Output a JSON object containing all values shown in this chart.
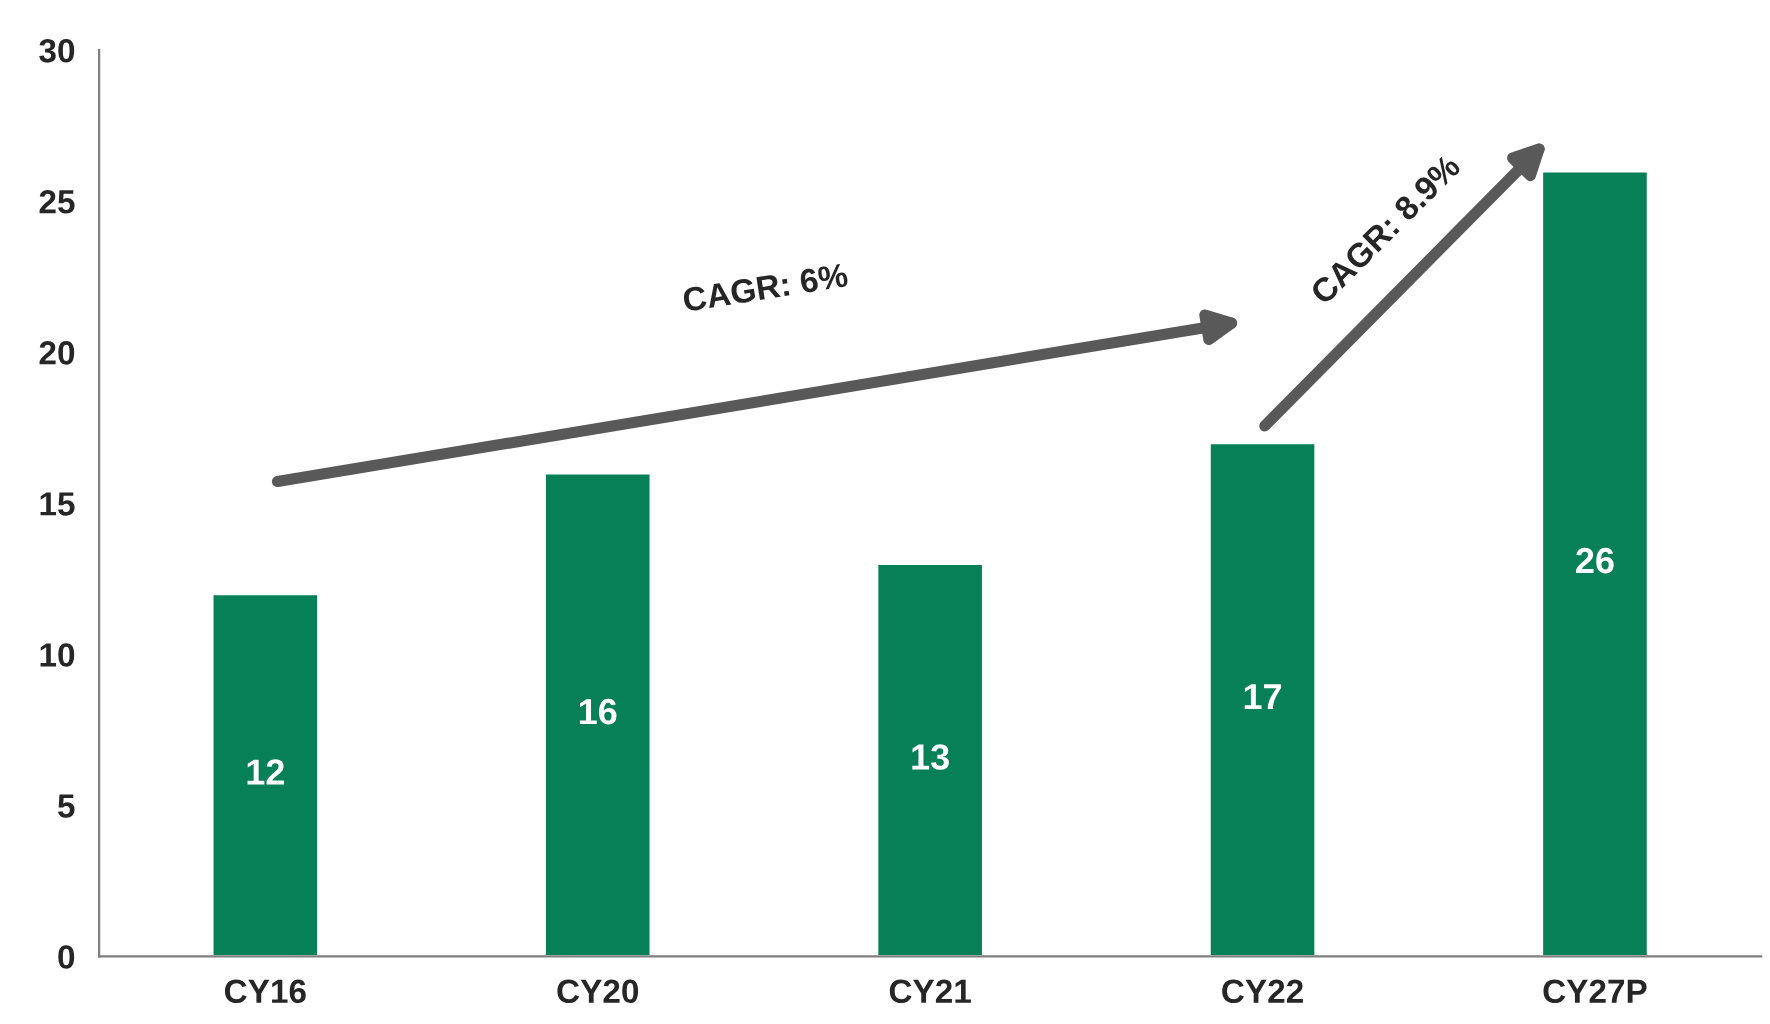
{
  "chart_data": {
    "type": "bar",
    "categories": [
      "CY16",
      "CY20",
      "CY21",
      "CY22",
      "CY27P"
    ],
    "values": [
      12,
      16,
      13,
      17,
      26
    ],
    "color": "#077f57",
    "ylim": [
      0,
      30
    ],
    "yticks": [
      0,
      5,
      10,
      15,
      20,
      25,
      30
    ],
    "grid": false,
    "legend": false,
    "data_labels": true,
    "annotations": [
      "CAGR: 6%",
      "CAGR: 8.9%"
    ]
  }
}
